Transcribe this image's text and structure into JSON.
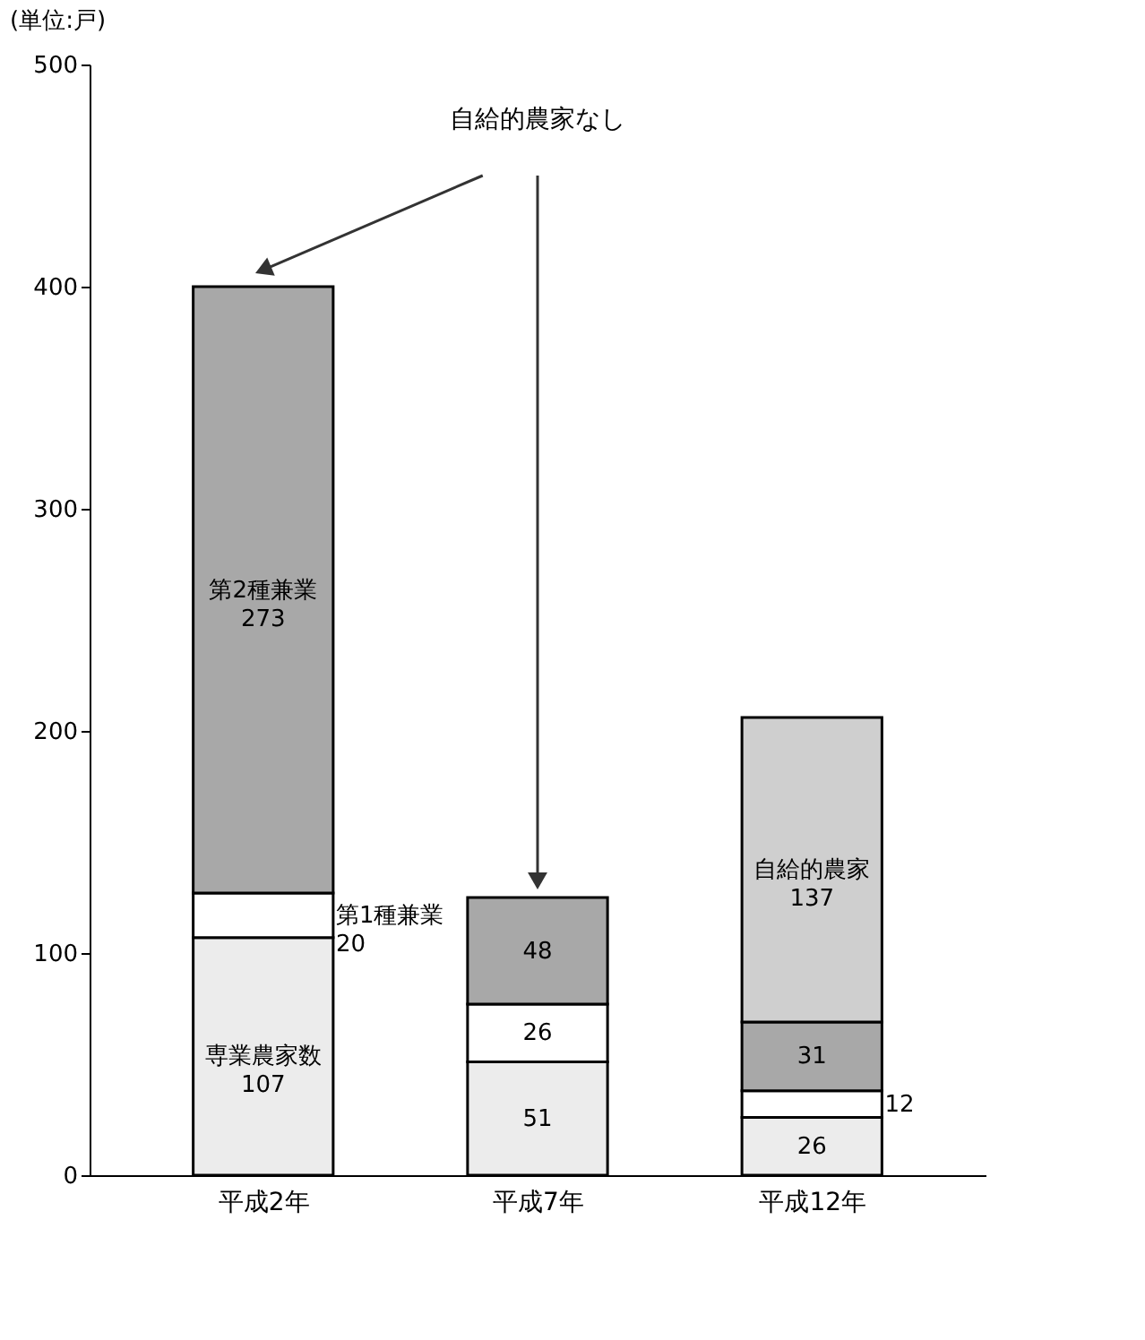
{
  "chart_data": {
    "type": "bar",
    "stacked": true,
    "ylabel": "(単位:戸)",
    "categories": [
      "平成2年",
      "平成7年",
      "平成12年"
    ],
    "series": [
      {
        "name": "専業農家数",
        "color": "#ececec",
        "values": [
          107,
          51,
          26
        ]
      },
      {
        "name": "第1種兼業",
        "color": "#ffffff",
        "values": [
          20,
          26,
          12
        ]
      },
      {
        "name": "第2種兼業",
        "color": "#a8a8a8",
        "values": [
          273,
          48,
          31
        ]
      },
      {
        "name": "自給的農家",
        "color": "#cfcfcf",
        "values": [
          null,
          null,
          137
        ]
      }
    ],
    "ylim": [
      0,
      500
    ],
    "yticks": [
      0,
      100,
      200,
      300,
      400,
      500
    ],
    "grid": false,
    "legend": false,
    "data_labels": true,
    "annotations": [
      "自給的農家なし"
    ]
  }
}
